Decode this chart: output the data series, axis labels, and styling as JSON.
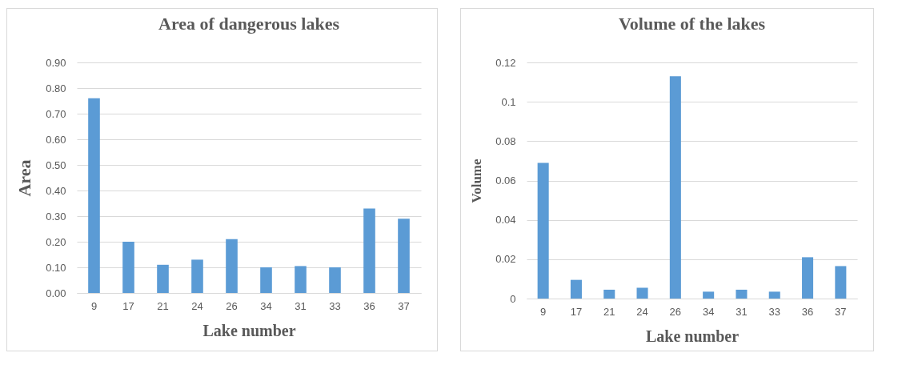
{
  "chart_data": [
    {
      "type": "bar",
      "title": "Area of dangerous lakes",
      "xlabel": "Lake number",
      "ylabel": "Area",
      "categories": [
        "9",
        "17",
        "21",
        "24",
        "26",
        "34",
        "31",
        "33",
        "36",
        "37"
      ],
      "values": [
        0.76,
        0.2,
        0.11,
        0.13,
        0.21,
        0.1,
        0.105,
        0.1,
        0.33,
        0.29
      ],
      "color": "#5b9bd5",
      "ylim": [
        0,
        0.9
      ],
      "yticks": [
        {
          "value": 0,
          "label": "0.00"
        },
        {
          "value": 0.1,
          "label": "0.10"
        },
        {
          "value": 0.2,
          "label": "0.20"
        },
        {
          "value": 0.3,
          "label": "0.30"
        },
        {
          "value": 0.4,
          "label": "0.40"
        },
        {
          "value": 0.5,
          "label": "0.50"
        },
        {
          "value": 0.6,
          "label": "0.60"
        },
        {
          "value": 0.7,
          "label": "0.70"
        },
        {
          "value": 0.8,
          "label": "0.80"
        },
        {
          "value": 0.9,
          "label": "0.90"
        }
      ],
      "grid": "y"
    },
    {
      "type": "bar",
      "title": "Volume of the lakes",
      "xlabel": "Lake number",
      "ylabel": "Volume",
      "categories": [
        "9",
        "17",
        "21",
        "24",
        "26",
        "34",
        "31",
        "33",
        "36",
        "37"
      ],
      "values": [
        0.069,
        0.0095,
        0.0045,
        0.0055,
        0.113,
        0.0035,
        0.0045,
        0.0035,
        0.021,
        0.0165
      ],
      "color": "#5b9bd5",
      "ylim": [
        0,
        0.12
      ],
      "yticks": [
        0,
        0.02,
        0.04,
        0.06,
        0.08,
        0.1,
        0.12
      ],
      "grid": "y"
    }
  ]
}
